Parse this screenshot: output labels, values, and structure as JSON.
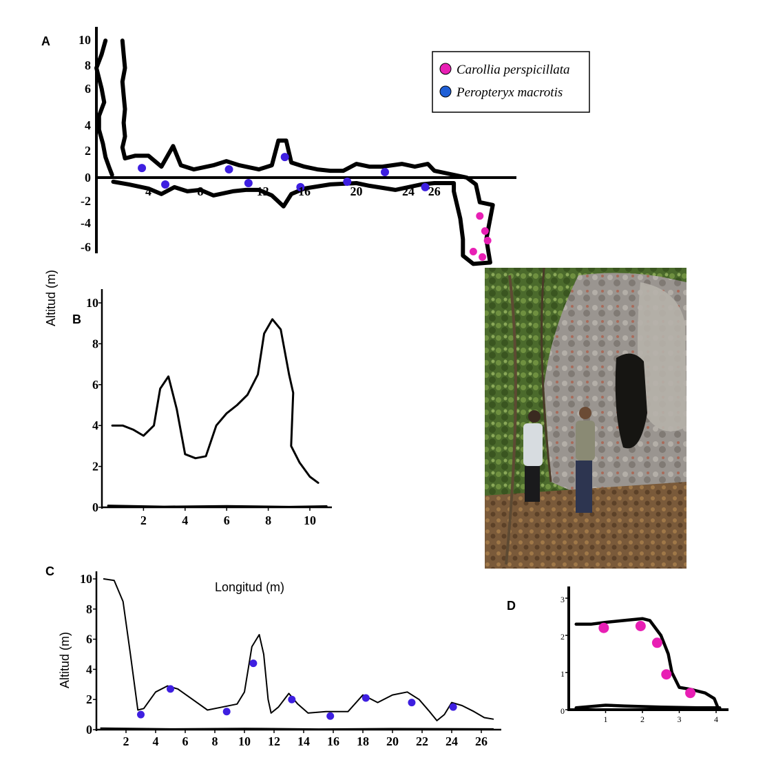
{
  "colors": {
    "carollia": "#e81fb4",
    "peropteryx": "#1f5fd6",
    "blue_points": "#3e1fe0",
    "profile": "#000000"
  },
  "legend": {
    "items": [
      {
        "label": "Carollia perspicillata",
        "color": "#e81fb4"
      },
      {
        "label": "Peropteryx macrotis",
        "color": "#1f5fd6"
      }
    ]
  },
  "axis_titles": {
    "altitud": "Altitud (m)",
    "longitud": "Longitud (m)"
  },
  "photo": {
    "description_icon": "cave-entrance-photo"
  },
  "chart_data": [
    {
      "panel": "A",
      "type": "line",
      "x_ticks": [
        "4",
        "8",
        "16",
        "20",
        "24",
        "26"
      ],
      "x_tick_values": [
        4,
        8,
        16,
        20,
        24,
        26
      ],
      "y_ticks": [
        "10",
        "8",
        "6",
        "4",
        "2",
        "0",
        "-2",
        "-4",
        "-6"
      ],
      "y_tick_values": [
        10,
        8,
        6,
        4,
        2,
        0,
        -2,
        -4,
        -6
      ],
      "partial_x_tick": "12",
      "xlim": [
        0,
        32
      ],
      "ylim": [
        -6.5,
        10.5
      ],
      "upper_wall": [
        [
          0.7,
          10.0
        ],
        [
          0.4,
          9.0
        ],
        [
          0.0,
          8.0
        ],
        [
          0.4,
          6.5
        ],
        [
          0.6,
          5.5
        ],
        [
          0.2,
          4.5
        ],
        [
          0.2,
          3.5
        ],
        [
          0.5,
          2.5
        ],
        [
          0.7,
          1.5
        ],
        [
          1.0,
          0.7
        ],
        [
          1.2,
          0.2
        ]
      ],
      "roof_profile": [
        [
          2.0,
          10.0
        ],
        [
          2.1,
          9.0
        ],
        [
          2.2,
          8.0
        ],
        [
          2.0,
          7.0
        ],
        [
          2.1,
          6.0
        ],
        [
          2.2,
          5.0
        ],
        [
          2.1,
          4.0
        ],
        [
          2.2,
          3.0
        ],
        [
          2.0,
          2.2
        ],
        [
          2.2,
          1.4
        ],
        [
          3.0,
          1.6
        ],
        [
          4.0,
          1.6
        ],
        [
          5.0,
          0.8
        ],
        [
          5.9,
          2.3
        ],
        [
          6.5,
          0.9
        ],
        [
          7.5,
          0.6
        ],
        [
          9.0,
          0.9
        ],
        [
          10.0,
          1.2
        ],
        [
          11.0,
          0.9
        ],
        [
          12.5,
          0.6
        ],
        [
          13.5,
          0.9
        ],
        [
          14.0,
          2.7
        ],
        [
          14.6,
          2.7
        ],
        [
          15.0,
          1.1
        ],
        [
          16.0,
          0.8
        ],
        [
          17.0,
          0.6
        ],
        [
          18.0,
          0.5
        ],
        [
          19.0,
          0.5
        ],
        [
          20.0,
          1.0
        ],
        [
          21.0,
          0.8
        ],
        [
          22.0,
          0.8
        ],
        [
          23.5,
          1.0
        ],
        [
          24.5,
          0.8
        ],
        [
          25.5,
          1.0
        ],
        [
          26.0,
          0.5
        ],
        [
          27.0,
          0.3
        ],
        [
          28.5,
          0.0
        ],
        [
          29.2,
          -0.5
        ],
        [
          29.5,
          -1.8
        ],
        [
          30.5,
          -2.0
        ],
        [
          30.2,
          -3.5
        ],
        [
          30.0,
          -4.5
        ],
        [
          30.3,
          -6.2
        ],
        [
          29.0,
          -6.3
        ],
        [
          28.2,
          -5.7
        ],
        [
          28.2,
          -4.5
        ],
        [
          28.0,
          -3.0
        ],
        [
          27.5,
          -1.0
        ],
        [
          27.5,
          -0.4
        ],
        [
          26.0,
          -0.4
        ],
        [
          25.0,
          -0.5
        ],
        [
          24.0,
          -0.7
        ],
        [
          23.0,
          -0.9
        ],
        [
          21.0,
          -0.6
        ],
        [
          20.0,
          -0.4
        ],
        [
          18.0,
          -0.5
        ],
        [
          16.0,
          -0.8
        ],
        [
          15.0,
          -1.2
        ],
        [
          14.4,
          -2.1
        ],
        [
          13.5,
          -1.3
        ],
        [
          12.5,
          -0.9
        ],
        [
          11.5,
          -0.9
        ],
        [
          10.5,
          -1.0
        ],
        [
          9.0,
          -1.3
        ],
        [
          8.0,
          -0.9
        ],
        [
          7.0,
          -1.0
        ],
        [
          6.0,
          -0.7
        ],
        [
          5.0,
          -1.2
        ],
        [
          4.0,
          -0.8
        ],
        [
          2.5,
          -0.5
        ],
        [
          1.3,
          -0.3
        ]
      ],
      "peropteryx_points": [
        [
          3.5,
          0.7
        ],
        [
          5.3,
          -0.5
        ],
        [
          10.2,
          0.6
        ],
        [
          11.7,
          -0.4
        ],
        [
          14.5,
          1.5
        ],
        [
          15.7,
          -0.7
        ],
        [
          19.3,
          -0.3
        ],
        [
          22.2,
          0.4
        ],
        [
          25.3,
          -0.7
        ]
      ],
      "carollia_points": [
        [
          29.5,
          -2.8
        ],
        [
          29.9,
          -3.9
        ],
        [
          30.1,
          -4.6
        ],
        [
          29.0,
          -5.4
        ],
        [
          29.7,
          -5.8
        ]
      ]
    },
    {
      "panel": "B",
      "type": "line",
      "x_ticks": [
        "2",
        "4",
        "6",
        "8",
        "10"
      ],
      "x_tick_values": [
        2,
        4,
        6,
        8,
        10
      ],
      "y_ticks": [
        "10",
        "8",
        "6",
        "4",
        "2",
        "0"
      ],
      "y_tick_values": [
        10,
        8,
        6,
        4,
        2,
        0
      ],
      "xlim": [
        0,
        11
      ],
      "ylim": [
        0,
        10.5
      ],
      "profile": [
        [
          0.5,
          4.0
        ],
        [
          1.0,
          4.0
        ],
        [
          1.5,
          3.8
        ],
        [
          2.0,
          3.5
        ],
        [
          2.5,
          4.0
        ],
        [
          2.8,
          5.8
        ],
        [
          3.2,
          6.4
        ],
        [
          3.6,
          4.8
        ],
        [
          4.0,
          2.6
        ],
        [
          4.5,
          2.4
        ],
        [
          5.0,
          2.5
        ],
        [
          5.5,
          4.0
        ],
        [
          6.0,
          4.6
        ],
        [
          6.5,
          5.0
        ],
        [
          7.0,
          5.5
        ],
        [
          7.5,
          6.5
        ],
        [
          7.8,
          8.5
        ],
        [
          8.2,
          9.2
        ],
        [
          8.6,
          8.7
        ],
        [
          9.0,
          6.5
        ],
        [
          9.2,
          5.6
        ],
        [
          9.1,
          3.0
        ],
        [
          9.5,
          2.2
        ],
        [
          10.0,
          1.5
        ],
        [
          10.4,
          1.2
        ]
      ],
      "floor": [
        [
          0.3,
          0.08
        ],
        [
          3.0,
          0.03
        ],
        [
          6.0,
          0.06
        ],
        [
          9.0,
          0.02
        ],
        [
          10.8,
          0.05
        ]
      ]
    },
    {
      "panel": "C",
      "type": "line",
      "x_ticks": [
        "2",
        "4",
        "6",
        "8",
        "10",
        "12",
        "14",
        "16",
        "18",
        "20",
        "22",
        "24",
        "26"
      ],
      "x_tick_values": [
        2,
        4,
        6,
        8,
        10,
        12,
        14,
        16,
        18,
        20,
        22,
        24,
        26
      ],
      "y_ticks": [
        "10",
        "8",
        "6",
        "4",
        "2",
        "0"
      ],
      "y_tick_values": [
        10,
        8,
        6,
        4,
        2,
        0
      ],
      "xlim": [
        0,
        27
      ],
      "ylim": [
        0,
        10.5
      ],
      "profile": [
        [
          0.5,
          10.0
        ],
        [
          1.2,
          9.9
        ],
        [
          1.8,
          8.5
        ],
        [
          2.3,
          5.0
        ],
        [
          2.8,
          1.3
        ],
        [
          3.2,
          1.4
        ],
        [
          4.0,
          2.5
        ],
        [
          4.8,
          2.9
        ],
        [
          5.5,
          2.7
        ],
        [
          6.5,
          2.0
        ],
        [
          7.5,
          1.3
        ],
        [
          8.5,
          1.5
        ],
        [
          9.5,
          1.7
        ],
        [
          10.0,
          2.5
        ],
        [
          10.5,
          5.5
        ],
        [
          11.0,
          6.3
        ],
        [
          11.3,
          5.0
        ],
        [
          11.6,
          2.0
        ],
        [
          11.8,
          1.1
        ],
        [
          12.3,
          1.5
        ],
        [
          13.0,
          2.4
        ],
        [
          13.6,
          1.7
        ],
        [
          14.3,
          1.1
        ],
        [
          15.5,
          1.2
        ],
        [
          17.0,
          1.2
        ],
        [
          18.0,
          2.3
        ],
        [
          19.0,
          1.8
        ],
        [
          20.0,
          2.3
        ],
        [
          21.0,
          2.5
        ],
        [
          21.8,
          2.0
        ],
        [
          22.5,
          1.2
        ],
        [
          23.0,
          0.6
        ],
        [
          23.5,
          1.0
        ],
        [
          24.0,
          1.8
        ],
        [
          24.7,
          1.6
        ],
        [
          25.5,
          1.2
        ],
        [
          26.2,
          0.8
        ],
        [
          26.8,
          0.7
        ]
      ],
      "floor": [
        [
          0.3,
          0.1
        ],
        [
          5.0,
          0.05
        ],
        [
          10.0,
          0.08
        ],
        [
          15.0,
          0.04
        ],
        [
          20.0,
          0.07
        ],
        [
          26.8,
          0.05
        ]
      ],
      "points": [
        [
          3.0,
          1.0
        ],
        [
          5.0,
          2.7
        ],
        [
          8.8,
          1.2
        ],
        [
          10.6,
          4.4
        ],
        [
          13.2,
          2.0
        ],
        [
          15.8,
          0.9
        ],
        [
          18.2,
          2.1
        ],
        [
          21.3,
          1.8
        ],
        [
          24.1,
          1.5
        ]
      ]
    },
    {
      "panel": "D",
      "type": "line",
      "x_ticks": [
        "1",
        "2",
        "3",
        "4"
      ],
      "x_tick_values": [
        1,
        2,
        3,
        4
      ],
      "y_ticks": [
        "3",
        "2",
        "1",
        "0"
      ],
      "y_tick_values": [
        3,
        2,
        1,
        0
      ],
      "xlim": [
        0,
        4.3
      ],
      "ylim": [
        0,
        3.2
      ],
      "profile": [
        [
          0.2,
          2.3
        ],
        [
          0.6,
          2.3
        ],
        [
          1.0,
          2.35
        ],
        [
          1.5,
          2.4
        ],
        [
          2.0,
          2.45
        ],
        [
          2.2,
          2.4
        ],
        [
          2.5,
          2.0
        ],
        [
          2.7,
          1.5
        ],
        [
          2.8,
          1.0
        ],
        [
          3.0,
          0.6
        ],
        [
          3.3,
          0.55
        ],
        [
          3.7,
          0.45
        ],
        [
          3.95,
          0.3
        ],
        [
          4.05,
          0.05
        ]
      ],
      "floor": [
        [
          0.2,
          0.05
        ],
        [
          1.0,
          0.12
        ],
        [
          1.5,
          0.1
        ],
        [
          2.5,
          0.07
        ],
        [
          3.5,
          0.05
        ],
        [
          4.1,
          0.05
        ]
      ],
      "carollia_points": [
        [
          0.95,
          2.2
        ],
        [
          1.95,
          2.25
        ],
        [
          2.4,
          1.8
        ],
        [
          2.65,
          0.95
        ],
        [
          3.3,
          0.45
        ]
      ]
    }
  ]
}
